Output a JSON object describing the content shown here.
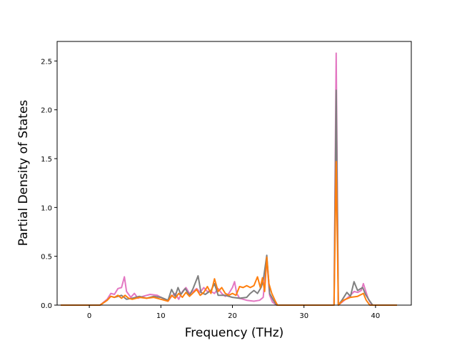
{
  "chart_data": {
    "type": "line",
    "title": "",
    "xlabel": "Frequency (THz)",
    "ylabel": "Partial Density of States",
    "xlim": [
      -4.5,
      45.0
    ],
    "ylim": [
      0.0,
      2.7
    ],
    "xticks": [
      0,
      10,
      20,
      30,
      40
    ],
    "yticks": [
      0.0,
      0.5,
      1.0,
      1.5,
      2.0,
      2.5
    ],
    "xtick_labels": [
      "0",
      "10",
      "20",
      "30",
      "40"
    ],
    "ytick_labels": [
      "0.0",
      "0.5",
      "1.0",
      "1.5",
      "2.0",
      "2.5"
    ],
    "grid": false,
    "legend": "none",
    "series": [
      {
        "color": "#e377c2",
        "points": [
          [
            -4.0,
            0.0
          ],
          [
            1.5,
            0.0
          ],
          [
            2.5,
            0.06
          ],
          [
            3.0,
            0.12
          ],
          [
            3.5,
            0.11
          ],
          [
            4.0,
            0.17
          ],
          [
            4.5,
            0.18
          ],
          [
            4.9,
            0.29
          ],
          [
            5.2,
            0.14
          ],
          [
            5.8,
            0.08
          ],
          [
            6.3,
            0.12
          ],
          [
            6.8,
            0.07
          ],
          [
            7.5,
            0.09
          ],
          [
            8.5,
            0.11
          ],
          [
            9.5,
            0.1
          ],
          [
            10.5,
            0.06
          ],
          [
            11.0,
            0.04
          ],
          [
            11.5,
            0.09
          ],
          [
            12.0,
            0.12
          ],
          [
            12.5,
            0.06
          ],
          [
            13.0,
            0.14
          ],
          [
            13.5,
            0.18
          ],
          [
            14.0,
            0.12
          ],
          [
            14.5,
            0.14
          ],
          [
            15.0,
            0.17
          ],
          [
            15.5,
            0.13
          ],
          [
            16.0,
            0.18
          ],
          [
            16.5,
            0.14
          ],
          [
            17.0,
            0.14
          ],
          [
            17.5,
            0.12
          ],
          [
            18.0,
            0.17
          ],
          [
            18.5,
            0.12
          ],
          [
            19.0,
            0.09
          ],
          [
            19.5,
            0.12
          ],
          [
            20.0,
            0.18
          ],
          [
            20.3,
            0.24
          ],
          [
            20.6,
            0.12
          ],
          [
            21.0,
            0.07
          ],
          [
            21.5,
            0.06
          ],
          [
            22.0,
            0.05
          ],
          [
            23.0,
            0.04
          ],
          [
            23.8,
            0.05
          ],
          [
            24.3,
            0.08
          ],
          [
            24.8,
            0.46
          ],
          [
            25.2,
            0.1
          ],
          [
            25.6,
            0.03
          ],
          [
            26.2,
            0.0
          ],
          [
            34.2,
            0.0
          ],
          [
            34.5,
            2.58
          ],
          [
            34.8,
            0.0
          ],
          [
            35.5,
            0.04
          ],
          [
            36.0,
            0.07
          ],
          [
            36.5,
            0.1
          ],
          [
            37.0,
            0.14
          ],
          [
            37.5,
            0.13
          ],
          [
            38.0,
            0.15
          ],
          [
            38.3,
            0.22
          ],
          [
            38.6,
            0.15
          ],
          [
            39.0,
            0.06
          ],
          [
            39.5,
            0.0
          ],
          [
            43.0,
            0.0
          ]
        ]
      },
      {
        "color": "#7f7f7f",
        "points": [
          [
            -4.0,
            0.0
          ],
          [
            1.5,
            0.0
          ],
          [
            2.5,
            0.05
          ],
          [
            3.0,
            0.09
          ],
          [
            3.5,
            0.08
          ],
          [
            4.5,
            0.1
          ],
          [
            5.2,
            0.06
          ],
          [
            6.0,
            0.07
          ],
          [
            7.0,
            0.09
          ],
          [
            8.0,
            0.07
          ],
          [
            9.0,
            0.09
          ],
          [
            10.0,
            0.08
          ],
          [
            11.0,
            0.05
          ],
          [
            11.5,
            0.16
          ],
          [
            12.0,
            0.09
          ],
          [
            12.4,
            0.18
          ],
          [
            12.8,
            0.11
          ],
          [
            13.4,
            0.17
          ],
          [
            14.0,
            0.1
          ],
          [
            14.5,
            0.17
          ],
          [
            15.2,
            0.3
          ],
          [
            15.6,
            0.13
          ],
          [
            16.2,
            0.11
          ],
          [
            17.0,
            0.15
          ],
          [
            17.5,
            0.22
          ],
          [
            18.0,
            0.1
          ],
          [
            19.0,
            0.1
          ],
          [
            20.0,
            0.08
          ],
          [
            21.0,
            0.07
          ],
          [
            22.0,
            0.08
          ],
          [
            22.5,
            0.12
          ],
          [
            23.0,
            0.15
          ],
          [
            23.5,
            0.12
          ],
          [
            24.0,
            0.18
          ],
          [
            24.3,
            0.25
          ],
          [
            24.8,
            0.51
          ],
          [
            25.2,
            0.12
          ],
          [
            25.8,
            0.04
          ],
          [
            26.2,
            0.0
          ],
          [
            34.2,
            0.0
          ],
          [
            34.5,
            2.2
          ],
          [
            34.8,
            0.0
          ],
          [
            35.3,
            0.05
          ],
          [
            36.0,
            0.13
          ],
          [
            36.5,
            0.09
          ],
          [
            37.0,
            0.24
          ],
          [
            37.5,
            0.15
          ],
          [
            38.2,
            0.18
          ],
          [
            38.6,
            0.11
          ],
          [
            39.2,
            0.04
          ],
          [
            39.6,
            0.0
          ],
          [
            43.0,
            0.0
          ]
        ]
      },
      {
        "color": "#ff7f0e",
        "points": [
          [
            -4.0,
            0.0
          ],
          [
            1.5,
            0.0
          ],
          [
            2.5,
            0.05
          ],
          [
            3.0,
            0.09
          ],
          [
            3.5,
            0.08
          ],
          [
            4.0,
            0.1
          ],
          [
            4.5,
            0.07
          ],
          [
            5.0,
            0.1
          ],
          [
            5.5,
            0.07
          ],
          [
            6.0,
            0.06
          ],
          [
            7.0,
            0.08
          ],
          [
            8.0,
            0.07
          ],
          [
            9.0,
            0.08
          ],
          [
            10.0,
            0.06
          ],
          [
            11.0,
            0.04
          ],
          [
            11.5,
            0.1
          ],
          [
            12.0,
            0.07
          ],
          [
            12.5,
            0.12
          ],
          [
            13.0,
            0.08
          ],
          [
            13.5,
            0.13
          ],
          [
            14.0,
            0.09
          ],
          [
            15.0,
            0.16
          ],
          [
            15.5,
            0.1
          ],
          [
            16.0,
            0.13
          ],
          [
            16.5,
            0.19
          ],
          [
            17.0,
            0.12
          ],
          [
            17.5,
            0.27
          ],
          [
            18.0,
            0.14
          ],
          [
            18.5,
            0.18
          ],
          [
            19.0,
            0.12
          ],
          [
            19.5,
            0.1
          ],
          [
            20.0,
            0.12
          ],
          [
            20.5,
            0.1
          ],
          [
            21.0,
            0.19
          ],
          [
            21.5,
            0.18
          ],
          [
            22.0,
            0.2
          ],
          [
            22.5,
            0.18
          ],
          [
            23.0,
            0.2
          ],
          [
            23.5,
            0.29
          ],
          [
            23.9,
            0.18
          ],
          [
            24.2,
            0.28
          ],
          [
            24.5,
            0.14
          ],
          [
            24.8,
            0.49
          ],
          [
            25.1,
            0.22
          ],
          [
            25.5,
            0.12
          ],
          [
            26.0,
            0.04
          ],
          [
            26.3,
            0.0
          ],
          [
            34.2,
            0.0
          ],
          [
            34.5,
            1.47
          ],
          [
            34.8,
            0.0
          ],
          [
            35.5,
            0.05
          ],
          [
            36.5,
            0.08
          ],
          [
            37.5,
            0.09
          ],
          [
            38.3,
            0.12
          ],
          [
            38.7,
            0.05
          ],
          [
            39.2,
            0.0
          ],
          [
            43.0,
            0.0
          ]
        ]
      }
    ]
  }
}
